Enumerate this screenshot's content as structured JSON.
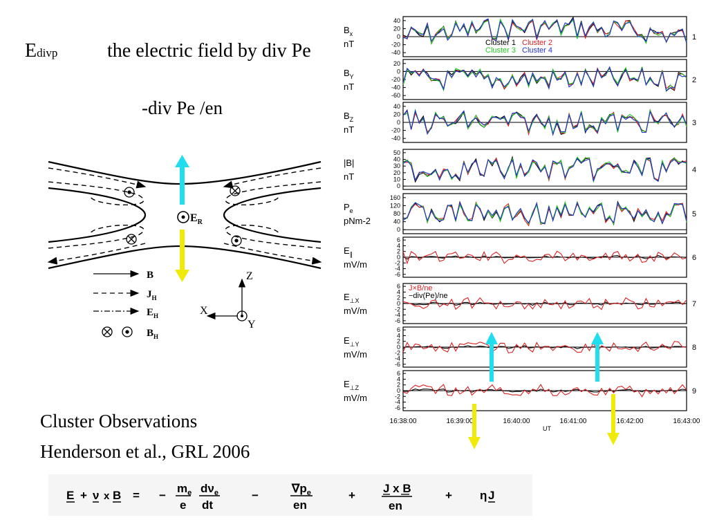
{
  "title": {
    "symbol_main": "E",
    "symbol_sub": "divp",
    "description": "the electric field by div Pe",
    "expression": "-div Pe /en"
  },
  "reference": {
    "line1": "Cluster Observations",
    "line2": "Henderson et al., GRL 2006"
  },
  "diagram": {
    "center_label": "E",
    "center_sub": "R",
    "legend": [
      {
        "symbol": "B",
        "sub": ""
      },
      {
        "symbol": "J",
        "sub": "H"
      },
      {
        "symbol": "E",
        "sub": "H"
      },
      {
        "symbol": "B",
        "sub": "H"
      }
    ],
    "axes": {
      "z": "Z",
      "x": "X",
      "y": "Y"
    },
    "colors": {
      "arrow_up": "#22ddee",
      "arrow_down": "#f0ea0a"
    }
  },
  "plots": {
    "panels": [
      {
        "label": "B",
        "sub": "x",
        "unit": " nT",
        "number": "1",
        "ticks": [
          "40",
          "20",
          "0",
          "-20",
          "-40"
        ]
      },
      {
        "label": "B",
        "sub": "Y",
        "unit": " nT",
        "number": "2",
        "ticks": [
          "20",
          "0",
          "-20",
          "-40",
          "-60"
        ]
      },
      {
        "label": "B",
        "sub": "Z",
        "unit": " nT",
        "number": "3",
        "ticks": [
          "40",
          "20",
          "0",
          "-20",
          "-40"
        ]
      },
      {
        "label": "|B|",
        "sub": "",
        "unit": " nT",
        "number": "4",
        "ticks": [
          "50",
          "40",
          "30",
          "20",
          "10",
          "0"
        ]
      },
      {
        "label": "P",
        "sub": "e",
        "unit": "pNm-2",
        "number": "5",
        "ticks": [
          "160",
          "120",
          "80",
          "40",
          "0"
        ]
      },
      {
        "label": "E",
        "sub": "∥",
        "unit": "mV/m",
        "number": "6",
        "ticks": [
          "6",
          "4",
          "2",
          "0",
          "-2",
          "-4",
          "-6"
        ]
      },
      {
        "label": "E",
        "sub": "⊥X",
        "unit": "mV/m",
        "number": "7",
        "ticks": [
          "6",
          "4",
          "2",
          "0",
          "-2",
          "-4",
          "-6"
        ]
      },
      {
        "label": "E",
        "sub": "⊥Y",
        "unit": "mV/m",
        "number": "8",
        "ticks": [
          "6",
          "4",
          "2",
          "0",
          "-2",
          "-4",
          "-6"
        ]
      },
      {
        "label": "E",
        "sub": "⊥Z",
        "unit": "mV/m",
        "number": "9",
        "ticks": [
          "6",
          "4",
          "2",
          "0",
          "-2",
          "-4",
          "-6"
        ]
      }
    ],
    "legend1": [
      {
        "name": "Cluster 1",
        "color": "#000000"
      },
      {
        "name": "Cluster 2",
        "color": "#dd2020"
      },
      {
        "name": "Cluster 3",
        "color": "#22cc22"
      },
      {
        "name": "Cluster 4",
        "color": "#2233cc"
      }
    ],
    "legend7": [
      {
        "name": "J×B/ne",
        "color": "#dd2020"
      },
      {
        "name": "−div(Pe)/ne",
        "color": "#000000"
      }
    ],
    "time_ticks": [
      "16:38:00",
      "16:39:00",
      "16:40:00",
      "16:41:00",
      "16:42:00",
      "16:43:00"
    ],
    "time_label": "UT"
  },
  "equation": {
    "E": "E",
    "plus1": "+",
    "nu": "ν",
    "x": "x",
    "B": "B",
    "eq": "=",
    "minus1": "−",
    "me": "m",
    "me_sub": "e",
    "e": "e",
    "dv": "dν",
    "dv_sub": "e",
    "dt": "dt",
    "minus2": "−",
    "grad": "∇p",
    "grad_sub": "e",
    "en1": "en",
    "plus2": "+",
    "JxB": "J x B",
    "en2": "en",
    "plus3": "+",
    "eta": "η",
    "J": "J"
  }
}
